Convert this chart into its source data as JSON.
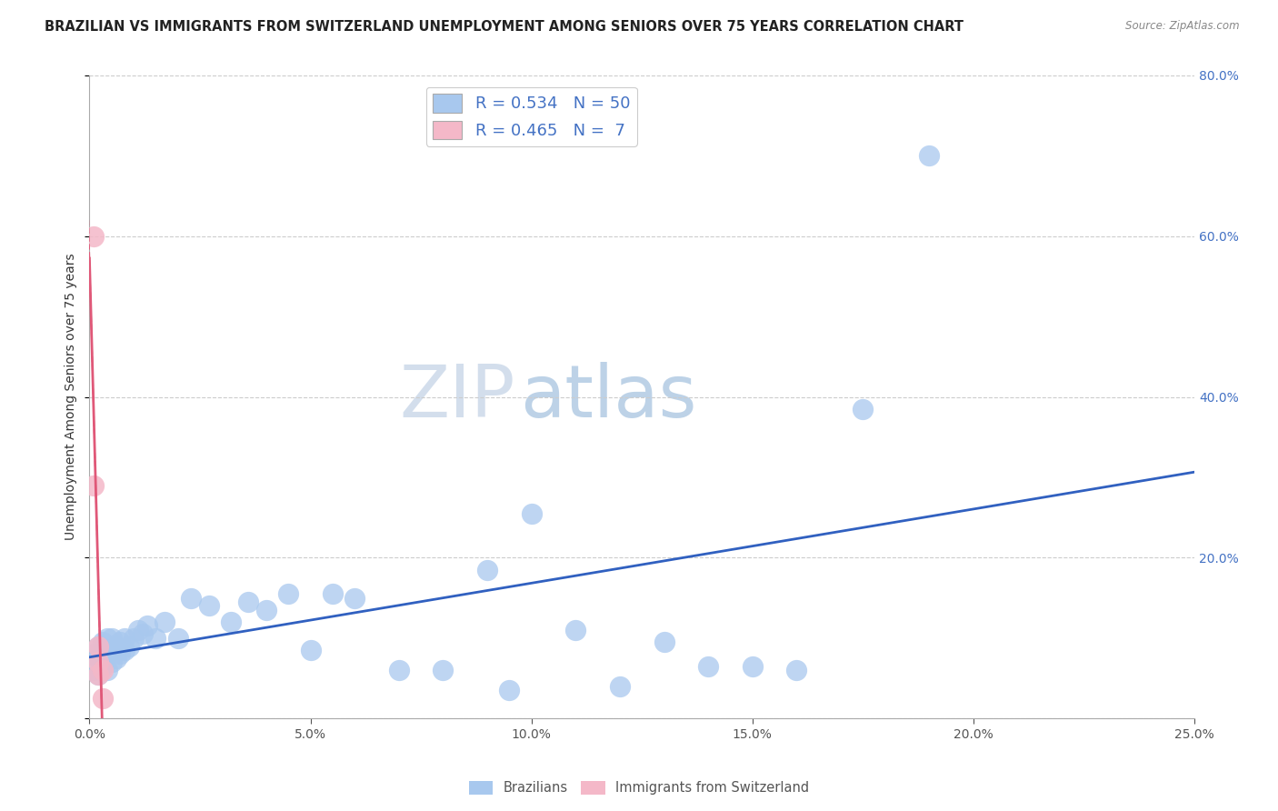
{
  "title": "BRAZILIAN VS IMMIGRANTS FROM SWITZERLAND UNEMPLOYMENT AMONG SENIORS OVER 75 YEARS CORRELATION CHART",
  "source": "Source: ZipAtlas.com",
  "ylabel": "Unemployment Among Seniors over 75 years",
  "watermark_zip": "ZIP",
  "watermark_atlas": "atlas",
  "xlim": [
    0.0,
    0.25
  ],
  "ylim": [
    0.0,
    0.8
  ],
  "xticks": [
    0.0,
    0.05,
    0.1,
    0.15,
    0.2,
    0.25
  ],
  "yticks": [
    0.0,
    0.2,
    0.4,
    0.6,
    0.8
  ],
  "R_blue": 0.534,
  "N_blue": 50,
  "R_pink": 0.465,
  "N_pink": 7,
  "blue_color": "#a8c8ee",
  "pink_color": "#f4b8c8",
  "blue_line_color": "#3060c0",
  "pink_line_color": "#e05878",
  "grid_color": "#cccccc",
  "right_tick_color": "#4472c4",
  "legend_R_color": "#4472c4",
  "brazil_x": [
    0.001,
    0.001,
    0.002,
    0.002,
    0.002,
    0.003,
    0.003,
    0.003,
    0.004,
    0.004,
    0.004,
    0.005,
    0.005,
    0.005,
    0.006,
    0.006,
    0.007,
    0.007,
    0.008,
    0.008,
    0.009,
    0.01,
    0.011,
    0.012,
    0.013,
    0.015,
    0.017,
    0.02,
    0.023,
    0.027,
    0.032,
    0.036,
    0.04,
    0.045,
    0.05,
    0.055,
    0.06,
    0.07,
    0.08,
    0.09,
    0.095,
    0.1,
    0.11,
    0.12,
    0.13,
    0.14,
    0.15,
    0.16,
    0.175,
    0.19
  ],
  "brazil_y": [
    0.06,
    0.08,
    0.055,
    0.075,
    0.09,
    0.065,
    0.08,
    0.095,
    0.06,
    0.08,
    0.1,
    0.07,
    0.085,
    0.1,
    0.075,
    0.09,
    0.08,
    0.095,
    0.085,
    0.1,
    0.09,
    0.1,
    0.11,
    0.105,
    0.115,
    0.1,
    0.12,
    0.1,
    0.15,
    0.14,
    0.12,
    0.145,
    0.135,
    0.155,
    0.085,
    0.155,
    0.15,
    0.06,
    0.06,
    0.185,
    0.035,
    0.255,
    0.11,
    0.04,
    0.095,
    0.065,
    0.065,
    0.06,
    0.385,
    0.7
  ],
  "swiss_x": [
    0.001,
    0.001,
    0.002,
    0.002,
    0.002,
    0.003,
    0.003
  ],
  "swiss_y": [
    0.6,
    0.29,
    0.055,
    0.07,
    0.09,
    0.06,
    0.025
  ],
  "background_color": "#ffffff",
  "title_fontsize": 10.5,
  "axis_label_fontsize": 10,
  "tick_fontsize": 10,
  "legend_fontsize": 13,
  "watermark_fontsize_zip": 58,
  "watermark_fontsize_atlas": 58,
  "watermark_zip_color": "#b0c4de",
  "watermark_atlas_color": "#87aed4"
}
